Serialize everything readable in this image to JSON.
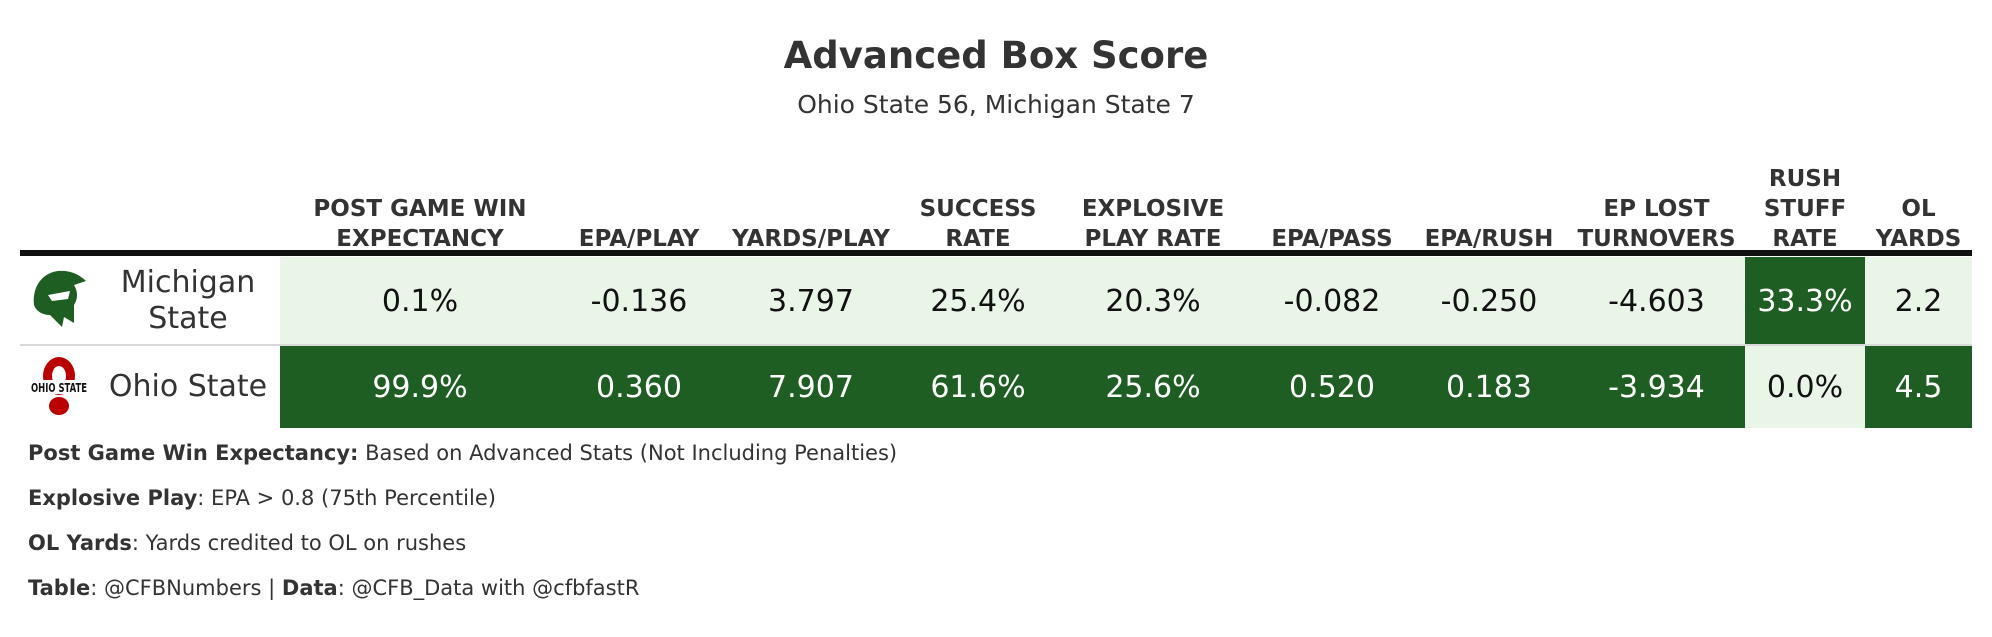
{
  "title": "Advanced Box Score",
  "subtitle": "Ohio State 56, Michigan State 7",
  "colors": {
    "dark_green": "#1e5e23",
    "light_green": "#e8f5e7",
    "header_rule": "#111111"
  },
  "chart_data": {
    "type": "table",
    "columns": [
      "POST GAME WIN\nEXPECTANCY",
      "EPA/PLAY",
      "YARDS/PLAY",
      "SUCCESS\nRATE",
      "EXPLOSIVE\nPLAY RATE",
      "EPA/PASS",
      "EPA/RUSH",
      "EP LOST\nTURNOVERS",
      "RUSH\nSTUFF\nRATE",
      "OL\nYARDS"
    ],
    "rows": [
      {
        "team": "Michigan\nState",
        "logo": "spartan-helmet-icon",
        "values": [
          "0.1%",
          "-0.136",
          "3.797",
          "25.4%",
          "20.3%",
          "-0.082",
          "-0.250",
          "-4.603",
          "33.3%",
          "2.2"
        ],
        "highlight": [
          false,
          false,
          false,
          false,
          false,
          false,
          false,
          false,
          true,
          false
        ]
      },
      {
        "team": "Ohio State",
        "logo": "ohio-state-block-o-icon",
        "values": [
          "99.9%",
          "0.360",
          "7.907",
          "61.6%",
          "25.6%",
          "0.520",
          "0.183",
          "-3.934",
          "0.0%",
          "4.5"
        ],
        "highlight": [
          true,
          true,
          true,
          true,
          true,
          true,
          true,
          true,
          false,
          true
        ]
      }
    ]
  },
  "notes": [
    {
      "bold": "Post Game Win Expectancy:",
      "text": " Based on Advanced Stats (Not Including Penalties)"
    },
    {
      "bold": "Explosive Play",
      "text": ": EPA > 0.8 (75th Percentile)"
    },
    {
      "bold": "OL Yards",
      "text": ": Yards credited to OL on rushes"
    },
    {
      "bold": "Table",
      "text": ": @CFBNumbers | ",
      "bold2": "Data",
      "text2": ": @CFB_Data with @cfbfastR"
    }
  ]
}
